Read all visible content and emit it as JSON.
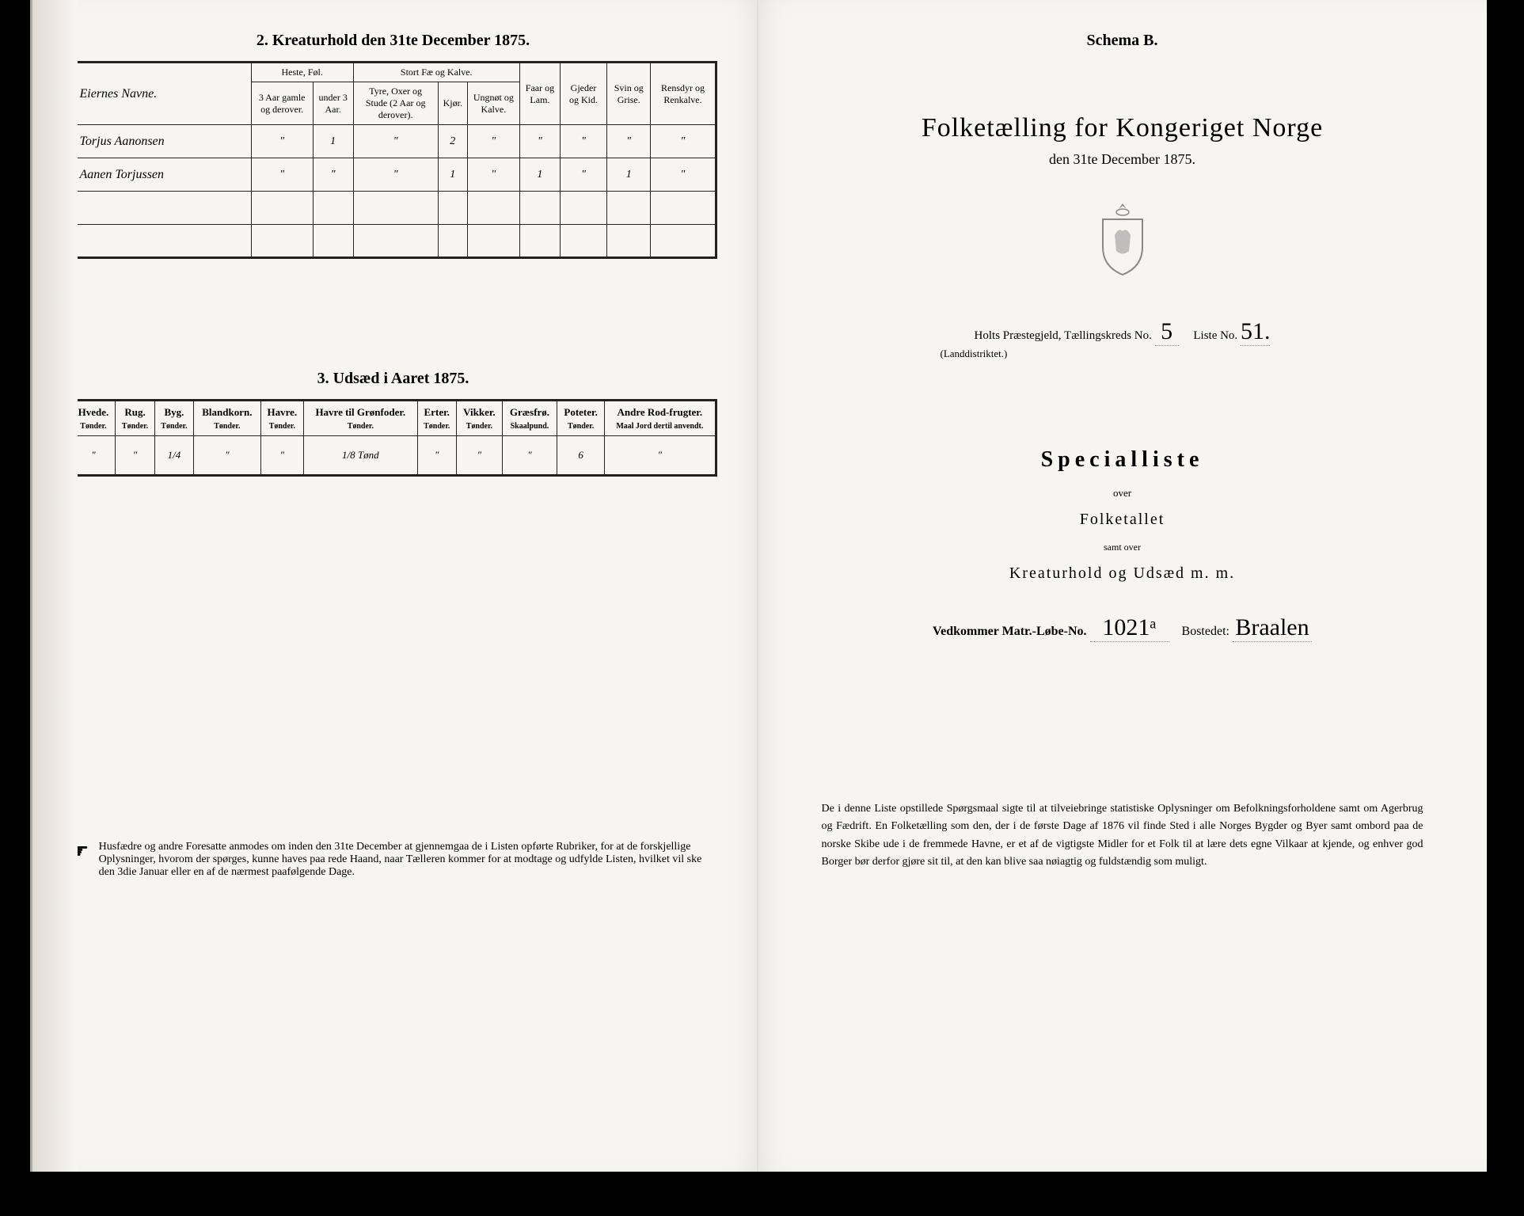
{
  "left": {
    "section2_title": "2.  Kreaturhold den 31te December 1875.",
    "kreatur_headers": {
      "owner": "Eiernes Navne.",
      "heste_group": "Heste, Føl.",
      "heste_a": "3 Aar gamle og derover.",
      "heste_b": "under 3 Aar.",
      "stort_group": "Stort Fæ og Kalve.",
      "stort_a": "Tyre, Oxer og Stude (2 Aar og derover).",
      "stort_b": "Kjør.",
      "stort_c": "Ungnøt og Kalve.",
      "faar": "Faar og Lam.",
      "gjeder": "Gjeder og Kid.",
      "svin": "Svin og Grise.",
      "rensdyr": "Rensdyr og Renkalve."
    },
    "kreatur_rows": [
      {
        "name": "Torjus Aanonsen",
        "c": [
          "\"",
          "1",
          "\"",
          "2",
          "\"",
          "\"",
          "\"",
          "\"",
          "\""
        ]
      },
      {
        "name": "Aanen Torjussen",
        "c": [
          "\"",
          "\"",
          "\"",
          "1",
          "\"",
          "1",
          "\"",
          "1",
          "\""
        ]
      },
      {
        "name": "",
        "c": [
          "",
          "",
          "",
          "",
          "",
          "",
          "",
          "",
          ""
        ]
      },
      {
        "name": "",
        "c": [
          "",
          "",
          "",
          "",
          "",
          "",
          "",
          "",
          ""
        ]
      }
    ],
    "section3_title": "3.  Udsæd i Aaret 1875.",
    "udsaed_headers": [
      {
        "t": "Hvede.",
        "s": "Tønder."
      },
      {
        "t": "Rug.",
        "s": "Tønder."
      },
      {
        "t": "Byg.",
        "s": "Tønder."
      },
      {
        "t": "Blandkorn.",
        "s": "Tønder."
      },
      {
        "t": "Havre.",
        "s": "Tønder."
      },
      {
        "t": "Havre til Grønfoder.",
        "s": "Tønder."
      },
      {
        "t": "Erter.",
        "s": "Tønder."
      },
      {
        "t": "Vikker.",
        "s": "Tønder."
      },
      {
        "t": "Græsfrø.",
        "s": "Skaalpund."
      },
      {
        "t": "Poteter.",
        "s": "Tønder."
      },
      {
        "t": "Andre Rod-frugter.",
        "s": "Maal Jord dertil anvendt."
      }
    ],
    "udsaed_row": [
      "\"",
      "\"",
      "1/4",
      "\"",
      "\"",
      "1/8 Tønd",
      "\"",
      "\"",
      "\"",
      "6",
      "\""
    ],
    "footnote": "Husfædre og andre Foresatte anmodes om inden den 31te December at gjennemgaa de i Listen opførte Rubriker, for at de forskjellige Oplysninger, hvorom der spørges, kunne haves paa rede Haand, naar Tælleren kommer for at modtage og udfylde Listen, hvilket vil ske den 3die Januar eller en af de nærmest paafølgende Dage."
  },
  "right": {
    "schema": "Schema B.",
    "main_title": "Folketælling for Kongeriget Norge",
    "sub_date": "den 31te December 1875.",
    "kreds_prefix": "Holts Præstegjeld, Tællingskreds No.",
    "landdistrikt": "(Landdistriktet.)",
    "kreds_no": "5",
    "liste_label": "Liste No.",
    "liste_no": "51.",
    "specialliste": "Specialliste",
    "over": "over",
    "folketallet": "Folketallet",
    "samt": "samt over",
    "kreatur_line": "Kreaturhold og Udsæd m. m.",
    "vedkommer_label": "Vedkommer Matr.-Løbe-No.",
    "matr_no": "1021ᵃ",
    "bostedet_label": "Bostedet:",
    "bostedet": "Braalen",
    "bottom": "De i denne Liste opstillede Spørgsmaal sigte til at tilveiebringe statistiske Oplysninger om Befolkningsforholdene samt om Agerbrug og Fædrift. En Folketælling som den, der i de første Dage af 1876 vil finde Sted i alle Norges Bygder og Byer samt ombord paa de norske Skibe ude i de fremmede Havne, er et af de vigtigste Midler for et Folk til at lære dets egne Vilkaar at kjende, og enhver god Borger bør derfor gjøre sit til, at den kan blive saa nøiagtig og fuldstændig som muligt."
  },
  "colors": {
    "paper": "#f7f5f0",
    "ink": "#222222",
    "background": "#000000"
  }
}
